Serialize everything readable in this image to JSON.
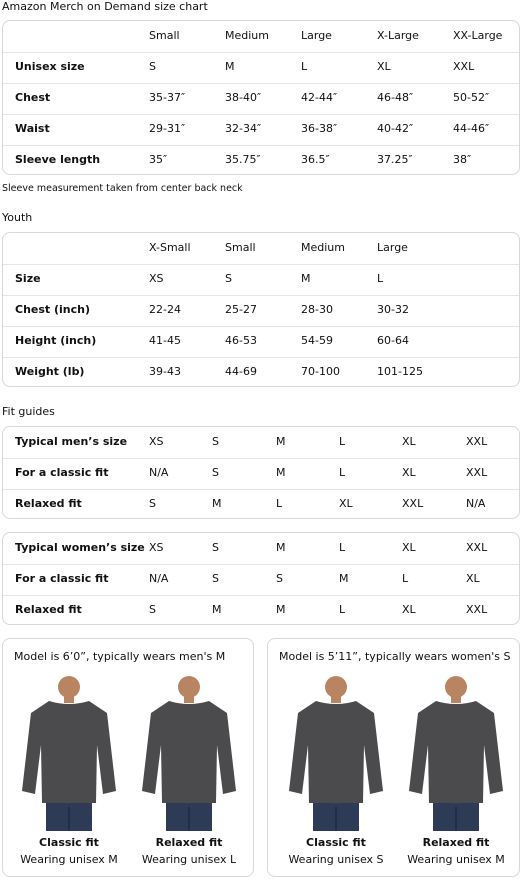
{
  "title": "Amazon Merch on Demand size chart",
  "adult_table": {
    "header": [
      "Small",
      "Medium",
      "Large",
      "X-Large",
      "XX-Large"
    ],
    "rows": [
      {
        "label": "Unisex size",
        "cells": [
          "S",
          "M",
          "L",
          "XL",
          "XXL"
        ]
      },
      {
        "label": "Chest",
        "cells": [
          "35-37″",
          "38-40″",
          "42-44″",
          "46-48″",
          "50-52″"
        ]
      },
      {
        "label": "Waist",
        "cells": [
          "29-31″",
          "32-34″",
          "36-38″",
          "40-42″",
          "44-46″"
        ]
      },
      {
        "label": "Sleeve length",
        "cells": [
          "35″",
          "35.75″",
          "36.5″",
          "37.25″",
          "38″"
        ]
      }
    ]
  },
  "note": "Sleeve measurement taken from center back neck",
  "youth_title": "Youth",
  "youth_table": {
    "header": [
      "X-Small",
      "Small",
      "Medium",
      "Large"
    ],
    "rows": [
      {
        "label": "Size",
        "cells": [
          "XS",
          "S",
          "M",
          "L"
        ]
      },
      {
        "label": "Chest (inch)",
        "cells": [
          "22-24",
          "25-27",
          "28-30",
          "30-32"
        ]
      },
      {
        "label": "Height (inch)",
        "cells": [
          "41-45",
          "46-53",
          "54-59",
          "60-64"
        ]
      },
      {
        "label": "Weight (lb)",
        "cells": [
          "39-43",
          "44-69",
          "70-100",
          "101-125"
        ]
      }
    ]
  },
  "fit_title": "Fit guides",
  "fit_tables": [
    {
      "rows": [
        {
          "label": "Typical men’s size",
          "cells": [
            "XS",
            "S",
            "M",
            "L",
            "XL",
            "XXL"
          ]
        },
        {
          "label": "For a classic fit",
          "cells": [
            "N/A",
            "S",
            "M",
            "L",
            "XL",
            "XXL"
          ]
        },
        {
          "label": "Relaxed fit",
          "cells": [
            "S",
            "M",
            "L",
            "XL",
            "XXL",
            "N/A"
          ]
        }
      ]
    },
    {
      "rows": [
        {
          "label": "Typical women’s size",
          "cells": [
            "XS",
            "S",
            "M",
            "L",
            "XL",
            "XXL"
          ]
        },
        {
          "label": "For a classic fit",
          "cells": [
            "N/A",
            "S",
            "S",
            "M",
            "L",
            "XL"
          ]
        },
        {
          "label": "Relaxed fit",
          "cells": [
            "S",
            "M",
            "M",
            "L",
            "XL",
            "XXL"
          ]
        }
      ]
    }
  ],
  "models": [
    {
      "caption": "Model is 6’0”, typically wears men's M",
      "figures": [
        {
          "fit": "Classic fit",
          "wearing": "Wearing unisex M"
        },
        {
          "fit": "Relaxed fit",
          "wearing": "Wearing unisex L"
        }
      ]
    },
    {
      "caption": "Model is 5’11”, typically wears women's S",
      "figures": [
        {
          "fit": "Classic fit",
          "wearing": "Wearing unisex S"
        },
        {
          "fit": "Relaxed fit",
          "wearing": "Wearing unisex M"
        }
      ]
    }
  ]
}
